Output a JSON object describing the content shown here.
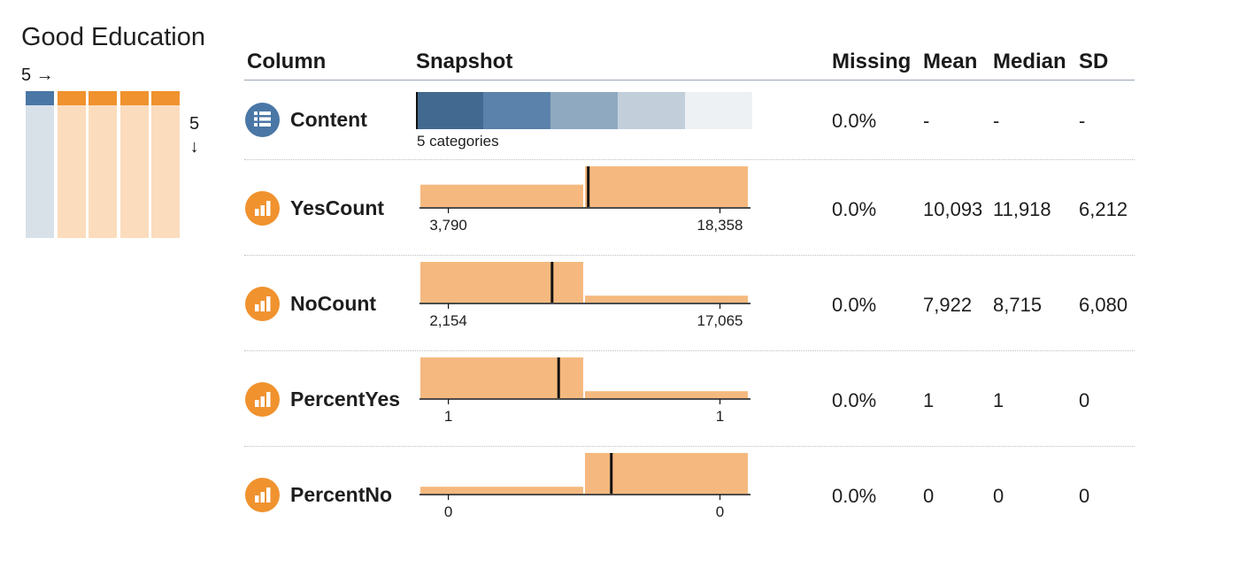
{
  "dataset": {
    "title": "Good Education",
    "column_count_label": "5 →",
    "row_count": "5",
    "row_arrow": "↓"
  },
  "overview_columns": [
    {
      "type": "categorical",
      "color": "#4a77a6",
      "fill": "#d8e0e8"
    },
    {
      "type": "numeric",
      "color": "#f0922e",
      "fill": "#fbdcbd"
    },
    {
      "type": "numeric",
      "color": "#f0922e",
      "fill": "#fbdcbd"
    },
    {
      "type": "numeric",
      "color": "#f0922e",
      "fill": "#fbdcbd"
    },
    {
      "type": "numeric",
      "color": "#f0922e",
      "fill": "#fbdcbd"
    }
  ],
  "headers": {
    "column": "Column",
    "snapshot": "Snapshot",
    "missing": "Missing",
    "mean": "Mean",
    "median": "Median",
    "sd": "SD"
  },
  "colors": {
    "categorical_icon": "#4a77a6",
    "numeric_icon": "#f0922e",
    "bar_fill": "#f5b97f",
    "median_line": "#111111"
  },
  "rows": [
    {
      "name": "Content",
      "icon": "list-icon",
      "kind": "categorical",
      "categories_label": "5 categories",
      "category_shares": [
        0.2,
        0.2,
        0.2,
        0.2,
        0.2
      ],
      "category_colors": [
        "#42698f",
        "#5b82ab",
        "#8fa9c1",
        "#c2cfdb",
        "#eef1f4"
      ],
      "missing": "0.0%",
      "mean": "-",
      "median": "-",
      "sd": "-"
    },
    {
      "name": "YesCount",
      "icon": "bar-chart-icon",
      "kind": "numeric",
      "bins": [
        0.55,
        1.0
      ],
      "median_fraction": 0.51,
      "tick_labels": [
        "3,790",
        "18,358"
      ],
      "missing": "0.0%",
      "mean": "10,093",
      "median": "11,918",
      "sd": "6,212"
    },
    {
      "name": "NoCount",
      "icon": "bar-chart-icon",
      "kind": "numeric",
      "bins": [
        1.0,
        0.17
      ],
      "median_fraction": 0.4,
      "tick_labels": [
        "2,154",
        "17,065"
      ],
      "missing": "0.0%",
      "mean": "7,922",
      "median": "8,715",
      "sd": "6,080"
    },
    {
      "name": "PercentYes",
      "icon": "bar-chart-icon",
      "kind": "numeric",
      "bins": [
        1.0,
        0.17
      ],
      "median_fraction": 0.42,
      "tick_labels": [
        "1",
        "1"
      ],
      "missing": "0.0%",
      "mean": "1",
      "median": "1",
      "sd": "0"
    },
    {
      "name": "PercentNo",
      "icon": "bar-chart-icon",
      "kind": "numeric",
      "bins": [
        0.17,
        1.0
      ],
      "median_fraction": 0.58,
      "tick_labels": [
        "0",
        "0"
      ],
      "missing": "0.0%",
      "mean": "0",
      "median": "0",
      "sd": "0"
    }
  ]
}
